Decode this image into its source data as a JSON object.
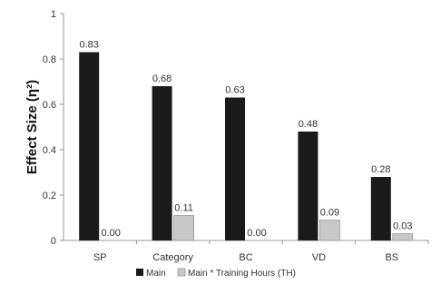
{
  "chart_data": {
    "type": "bar",
    "categories": [
      "SP",
      "Category",
      "BC",
      "VD",
      "BS"
    ],
    "series": [
      {
        "name": "Main",
        "values": [
          0.83,
          0.68,
          0.63,
          0.48,
          0.28
        ],
        "labels": [
          "0.83",
          "0.68",
          "0.63",
          "0.48",
          "0.28"
        ],
        "color": "#1a1a1a"
      },
      {
        "name": "Main * Training Hours (TH)",
        "values": [
          0.0,
          0.11,
          0.0,
          0.09,
          0.03
        ],
        "labels": [
          "0.00",
          "0.11",
          "0.00",
          "0.09",
          "0.03"
        ],
        "color": "#c8c8c8"
      }
    ],
    "ylabel": "Effect Size (η²)",
    "ylim": [
      0,
      1
    ],
    "yticks": [
      "0",
      "0.2",
      "0.4",
      "0.6",
      "0.8",
      "1"
    ],
    "yticks_values": [
      0,
      0.2,
      0.4,
      0.6,
      0.8,
      1
    ],
    "grid": false,
    "legend_position": "bottom"
  }
}
